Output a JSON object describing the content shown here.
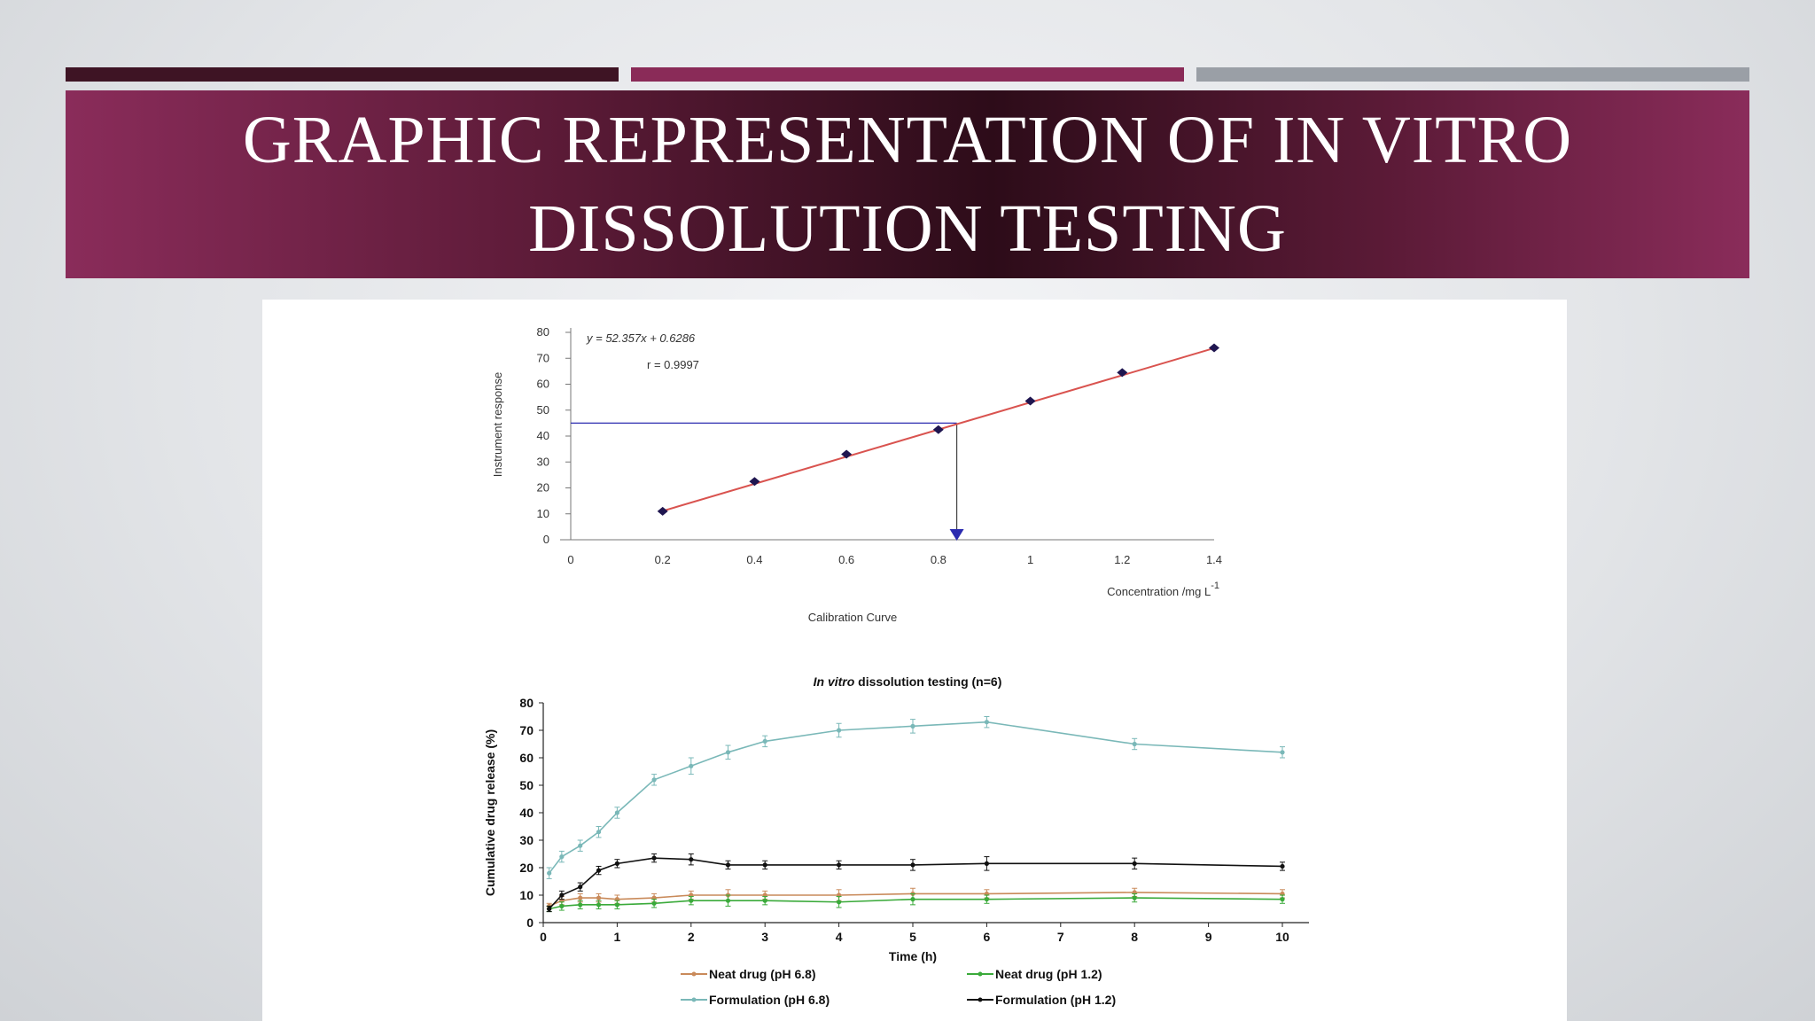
{
  "slide": {
    "title": "GRAPHIC REPRESENTATION OF IN VITRO DISSOLUTION TESTING"
  },
  "colors": {
    "band_dark": "#2d0c19",
    "band_light": "#8a2c5a",
    "bar1": "#3e1424",
    "bar2": "#8a2b58",
    "bar3": "#9a9fa6"
  },
  "chart_data": [
    {
      "type": "scatter",
      "caption": "Calibration Curve",
      "equation": "y = 52.357x + 0.6286",
      "r_value": "r  = 0.9997",
      "xlabel": "Concentration /mg L",
      "xlabel_sup": "-1",
      "ylabel": "Instrument response",
      "xlim": [
        0,
        1.4
      ],
      "ylim": [
        0,
        80
      ],
      "xticks": [
        "0",
        "0.2",
        "0.4",
        "0.6",
        "0.8",
        "1",
        "1.2",
        "1.4"
      ],
      "yticks": [
        "0",
        "10",
        "20",
        "30",
        "40",
        "50",
        "60",
        "70",
        "80"
      ],
      "points": [
        {
          "x": 0.2,
          "y": 11
        },
        {
          "x": 0.4,
          "y": 22.5
        },
        {
          "x": 0.6,
          "y": 33
        },
        {
          "x": 0.8,
          "y": 42.5
        },
        {
          "x": 1.0,
          "y": 53.5
        },
        {
          "x": 1.2,
          "y": 64.5
        },
        {
          "x": 1.4,
          "y": 74
        }
      ],
      "fit_line": {
        "x0": 0.2,
        "y0": 11.1,
        "x1": 1.4,
        "y1": 73.9,
        "color": "#d9534f"
      },
      "lookup": {
        "y": 45,
        "x": 0.84,
        "color": "#2b2bb0"
      },
      "point_color": "#1f1650"
    },
    {
      "type": "line",
      "title_italic": "In vitro",
      "title_rest": " dissolution testing (n=6)",
      "xlabel": "Time (h)",
      "ylabel": "Cumulative drug release (%)",
      "xlim": [
        0,
        10
      ],
      "ylim": [
        0,
        80
      ],
      "xticks": [
        "0",
        "1",
        "2",
        "3",
        "4",
        "5",
        "6",
        "7",
        "8",
        "9",
        "10"
      ],
      "yticks": [
        "0",
        "10",
        "20",
        "30",
        "40",
        "50",
        "60",
        "70",
        "80"
      ],
      "x": [
        0.08,
        0.25,
        0.5,
        0.75,
        1,
        1.5,
        2,
        2.5,
        3,
        4,
        5,
        6,
        8,
        10
      ],
      "legend": [
        [
          "Neat drug (pH 6.8)",
          "Neat drug (pH 1.2)"
        ],
        [
          "Formulation (pH 6.8)",
          "Formulation (pH 1.2)"
        ]
      ],
      "series": [
        {
          "name": "Neat drug (pH 6.8)",
          "color": "#c98a5a",
          "values": [
            6,
            8,
            9,
            9,
            8.5,
            9,
            10,
            10,
            10,
            10,
            10.5,
            10.5,
            11,
            10.5
          ],
          "errors": [
            1,
            1.5,
            1.5,
            1.5,
            1.5,
            1.5,
            1.5,
            2,
            1.5,
            2,
            2,
            1.5,
            1.5,
            1.5
          ]
        },
        {
          "name": "Neat drug (pH 1.2)",
          "color": "#3aaa3a",
          "values": [
            5,
            6,
            6.5,
            6.5,
            6.5,
            7,
            8,
            8,
            8,
            7.5,
            8.5,
            8.5,
            9,
            8.5
          ],
          "errors": [
            1,
            1.5,
            1.5,
            1.5,
            1.5,
            1.5,
            1.5,
            2,
            1.5,
            2,
            2,
            1.5,
            1.5,
            1.5
          ]
        },
        {
          "name": "Formulation (pH 6.8)",
          "color": "#7ab8b8",
          "values": [
            18,
            24,
            28,
            33,
            40,
            52,
            57,
            62,
            66,
            70,
            71.5,
            73,
            65,
            62
          ],
          "errors": [
            2,
            2,
            2,
            2,
            2,
            2,
            3,
            2.5,
            2,
            2.5,
            2.5,
            2,
            2,
            2
          ]
        },
        {
          "name": "Formulation (pH 1.2)",
          "color": "#111111",
          "values": [
            5,
            10,
            13,
            19,
            21.5,
            23.5,
            23,
            21,
            21,
            21,
            21,
            21.5,
            21.5,
            20.5
          ],
          "errors": [
            1,
            1.5,
            1.5,
            1.5,
            1.5,
            1.5,
            2,
            1.5,
            1.5,
            1.5,
            2,
            2.5,
            2,
            1.5
          ]
        }
      ]
    }
  ]
}
